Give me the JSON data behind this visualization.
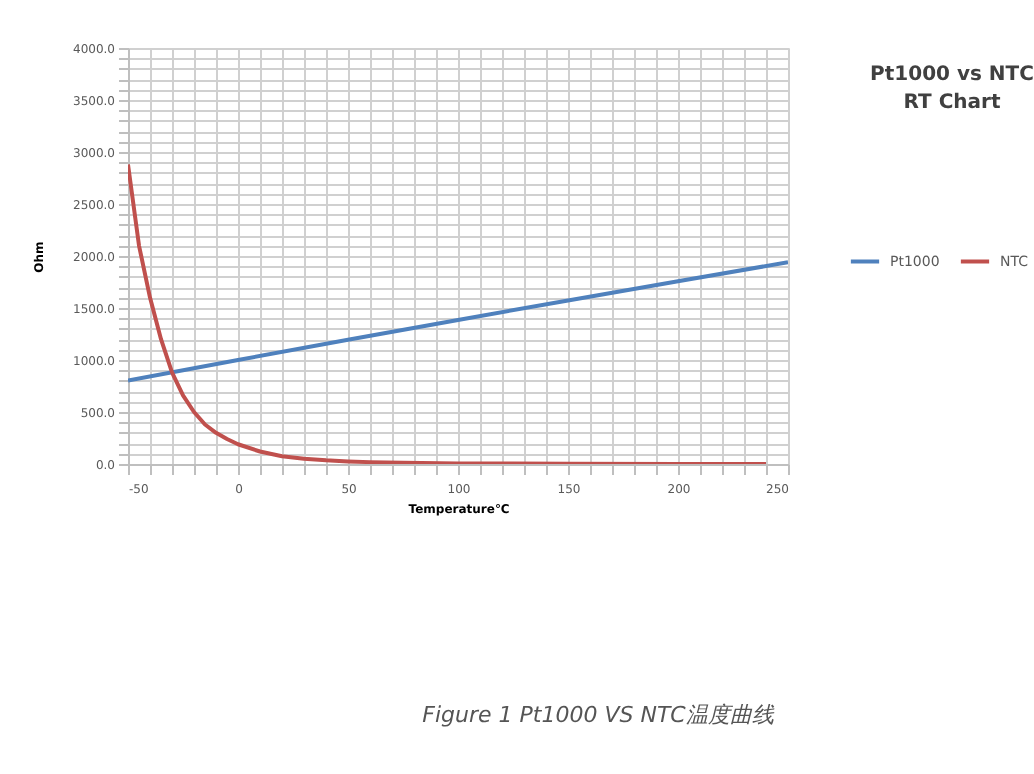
{
  "chart_data": {
    "type": "line",
    "title": "Pt1000 vs NTC\nRT Chart",
    "xlabel": "Temperature℃",
    "ylabel": "Ohm",
    "annotations": [
      "Figure 1 Pt1000 VS NTC温度曲线"
    ],
    "series": [
      {
        "name": "Pt1000",
        "color": "#4f81bd",
        "x": [
          -50,
          0,
          50,
          100,
          150,
          200,
          250
        ],
        "values": [
          803,
          1000,
          1194,
          1385,
          1573,
          1758,
          1940
        ]
      },
      {
        "name": "NTC",
        "color": "#c0504d",
        "x": [
          -50,
          -45,
          -40,
          -35,
          -30,
          -25,
          -20,
          -15,
          -10,
          -5,
          0,
          10,
          20,
          30,
          40,
          50,
          60,
          75,
          100,
          125,
          150,
          200,
          240
        ],
        "values": [
          2880,
          2100,
          1600,
          1200,
          880,
          660,
          500,
          380,
          300,
          240,
          190,
          120,
          75,
          50,
          35,
          25,
          18,
          12,
          6,
          4,
          2,
          1,
          0.5
        ]
      }
    ],
    "xlim": [
      -50,
      250
    ],
    "xticks": [
      -50,
      {
        "value": -40,
        "label": null
      },
      {
        "value": -30,
        "label": null
      },
      {
        "value": -20,
        "label": null
      },
      {
        "value": -10,
        "label": null
      },
      0,
      {
        "value": 10,
        "label": null
      },
      {
        "value": 20,
        "label": null
      },
      {
        "value": 30,
        "label": null
      },
      {
        "value": 40,
        "label": null
      },
      50,
      {
        "value": 60,
        "label": null
      },
      {
        "value": 70,
        "label": null
      },
      {
        "value": 80,
        "label": null
      },
      {
        "value": 90,
        "label": null
      },
      100,
      {
        "value": 110,
        "label": null
      },
      {
        "value": 120,
        "label": null
      },
      {
        "value": 130,
        "label": null
      },
      {
        "value": 140,
        "label": null
      },
      150,
      {
        "value": 160,
        "label": null
      },
      {
        "value": 170,
        "label": null
      },
      {
        "value": 180,
        "label": null
      },
      {
        "value": 190,
        "label": null
      },
      200,
      {
        "value": 210,
        "label": null
      },
      {
        "value": 220,
        "label": null
      },
      {
        "value": 230,
        "label": null
      },
      {
        "value": 240,
        "label": null
      },
      250
    ],
    "ylim": [
      0,
      4000
    ],
    "yticks": [
      {
        "value": 0,
        "label": "0.0"
      },
      {
        "value": 100,
        "label": null
      },
      {
        "value": 200,
        "label": null
      },
      {
        "value": 300,
        "label": null
      },
      {
        "value": 400,
        "label": null
      },
      {
        "value": 500,
        "label": "500.0"
      },
      {
        "value": 600,
        "label": null
      },
      {
        "value": 700,
        "label": null
      },
      {
        "value": 800,
        "label": null
      },
      {
        "value": 900,
        "label": null
      },
      {
        "value": 1000,
        "label": "1000.0"
      },
      {
        "value": 1100,
        "label": null
      },
      {
        "value": 1200,
        "label": null
      },
      {
        "value": 1300,
        "label": null
      },
      {
        "value": 1400,
        "label": null
      },
      {
        "value": 1500,
        "label": "1500.0"
      },
      {
        "value": 1600,
        "label": null
      },
      {
        "value": 1700,
        "label": null
      },
      {
        "value": 1800,
        "label": null
      },
      {
        "value": 1900,
        "label": null
      },
      {
        "value": 2000,
        "label": "2000.0"
      },
      {
        "value": 2100,
        "label": null
      },
      {
        "value": 2200,
        "label": null
      },
      {
        "value": 2300,
        "label": null
      },
      {
        "value": 2400,
        "label": null
      },
      {
        "value": 2500,
        "label": "2500.0"
      },
      {
        "value": 2600,
        "label": null
      },
      {
        "value": 2700,
        "label": null
      },
      {
        "value": 2800,
        "label": null
      },
      {
        "value": 2900,
        "label": null
      },
      {
        "value": 3000,
        "label": "3000.0"
      },
      {
        "value": 3100,
        "label": null
      },
      {
        "value": 3200,
        "label": null
      },
      {
        "value": 3300,
        "label": null
      },
      {
        "value": 3400,
        "label": null
      },
      {
        "value": 3500,
        "label": "3500.0"
      },
      {
        "value": 3600,
        "label": null
      },
      {
        "value": 3700,
        "label": null
      },
      {
        "value": 3800,
        "label": null
      },
      {
        "value": 3900,
        "label": null
      },
      {
        "value": 4000,
        "label": "4000.0"
      }
    ],
    "grid": true,
    "legend": "right",
    "marker": "none",
    "line_style": "solid"
  }
}
